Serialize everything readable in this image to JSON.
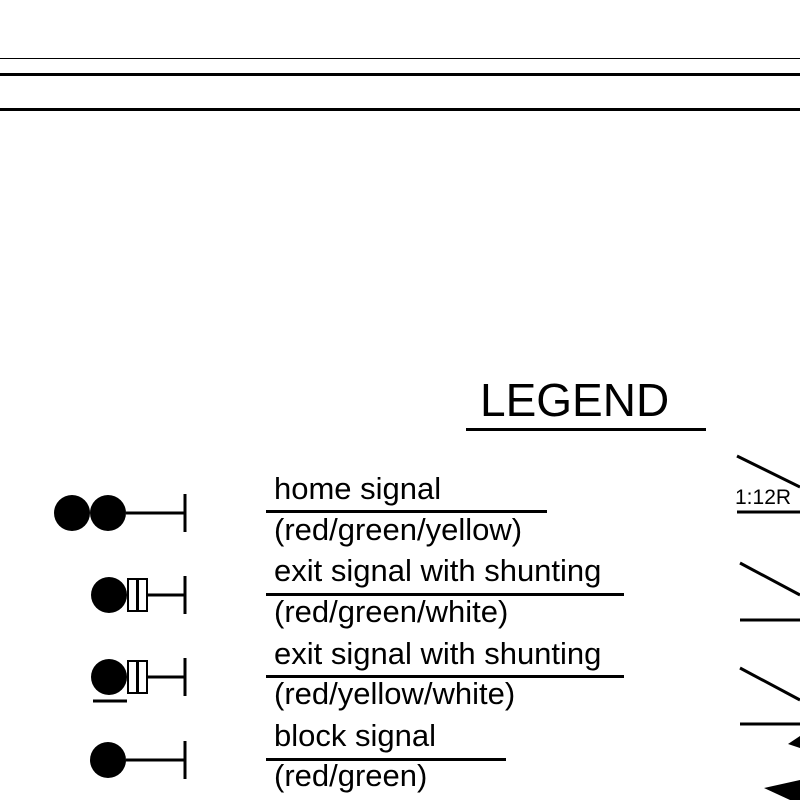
{
  "legend": {
    "title": "LEGEND",
    "entries": [
      {
        "line1": "home signal",
        "line2": "(red/green/yellow)",
        "icon": "two-aspect-signal-icon"
      },
      {
        "line1": "exit signal with shunting",
        "line2": "(red/green/white)",
        "icon": "exit-shunting-signal-icon"
      },
      {
        "line1": "exit signal with shunting",
        "line2": "(red/yellow/white)",
        "icon": "exit-shunting-signal-icon"
      },
      {
        "line1": "block signal",
        "line2": "(red/green)",
        "icon": "single-aspect-signal-icon"
      }
    ]
  },
  "turnout": {
    "grade_label": "1:12R"
  },
  "colors": {
    "ink": "#000000",
    "paper": "#ffffff"
  }
}
